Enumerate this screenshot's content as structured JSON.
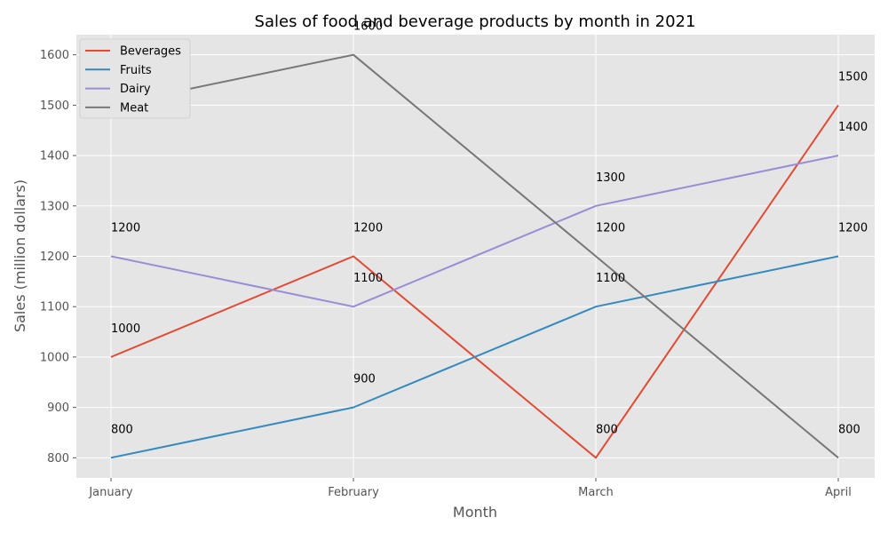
{
  "chart_data": {
    "type": "line",
    "title": "Sales of food and beverage products by month in 2021",
    "xlabel": "Month",
    "ylabel": "Sales (million dollars)",
    "categories": [
      "January",
      "February",
      "March",
      "April"
    ],
    "ylim": [
      760,
      1640
    ],
    "yticks": [
      800,
      900,
      1000,
      1100,
      1200,
      1300,
      1400,
      1500,
      1600
    ],
    "grid": true,
    "legend_position": "top-left",
    "series": [
      {
        "name": "Beverages",
        "color": "#E24A33",
        "values": [
          1000,
          1200,
          800,
          1500
        ]
      },
      {
        "name": "Fruits",
        "color": "#348ABD",
        "values": [
          800,
          900,
          1100,
          1200
        ]
      },
      {
        "name": "Dairy",
        "color": "#988ED5",
        "values": [
          1200,
          1100,
          1300,
          1400
        ]
      },
      {
        "name": "Meat",
        "color": "#777777",
        "values": [
          1500,
          1600,
          1200,
          800
        ]
      }
    ]
  }
}
